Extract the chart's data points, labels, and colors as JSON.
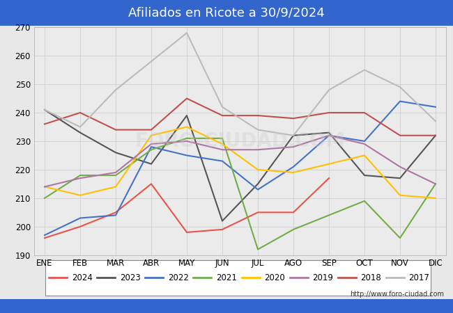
{
  "title": "Afiliados en Ricote a 30/9/2024",
  "title_bg_color": "#3366cc",
  "title_text_color": "white",
  "ylim": [
    190,
    270
  ],
  "yticks": [
    190,
    200,
    210,
    220,
    230,
    240,
    250,
    260,
    270
  ],
  "months": [
    "ENE",
    "FEB",
    "MAR",
    "ABR",
    "MAY",
    "JUN",
    "JUL",
    "AGO",
    "SEP",
    "OCT",
    "NOV",
    "DIC"
  ],
  "watermark": "FORO-CIUDAD.COM",
  "url": "http://www.foro-ciudad.com",
  "series": {
    "2024": {
      "color": "#e8534a",
      "data": [
        196,
        200,
        205,
        215,
        198,
        199,
        205,
        205,
        217,
        null,
        null,
        null
      ]
    },
    "2023": {
      "color": "#555555",
      "data": [
        241,
        233,
        226,
        222,
        239,
        202,
        215,
        232,
        233,
        218,
        217,
        232
      ]
    },
    "2022": {
      "color": "#4472c4",
      "data": [
        197,
        203,
        204,
        228,
        225,
        223,
        213,
        221,
        232,
        230,
        244,
        242
      ]
    },
    "2021": {
      "color": "#70ad47",
      "data": [
        210,
        218,
        218,
        227,
        231,
        231,
        192,
        199,
        204,
        209,
        196,
        215
      ]
    },
    "2020": {
      "color": "#ffc000",
      "data": [
        214,
        211,
        214,
        232,
        235,
        229,
        220,
        219,
        222,
        225,
        211,
        210
      ]
    },
    "2019": {
      "color": "#ae76a3",
      "data": [
        214,
        217,
        219,
        229,
        230,
        227,
        227,
        228,
        232,
        229,
        221,
        215
      ]
    },
    "2018": {
      "color": "#c0504d",
      "data": [
        236,
        240,
        234,
        234,
        245,
        239,
        239,
        238,
        240,
        240,
        232,
        232
      ]
    },
    "2017": {
      "color": "#bbbbbb",
      "data": [
        241,
        235,
        248,
        258,
        268,
        242,
        234,
        232,
        248,
        255,
        249,
        237
      ]
    }
  },
  "legend_order": [
    "2024",
    "2023",
    "2022",
    "2021",
    "2020",
    "2019",
    "2018",
    "2017"
  ],
  "bg_color": "#e8e8e8",
  "plot_bg_color": "#ebebeb",
  "grid_color": "#d0d0d0",
  "footer_bg": "#3366cc"
}
